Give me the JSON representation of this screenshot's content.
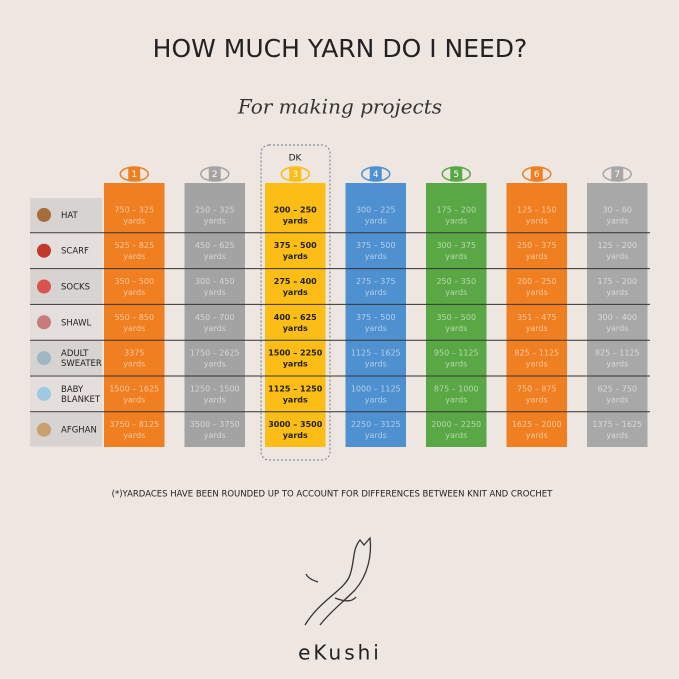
{
  "header": {
    "title": "HOW MUCH YARN DO I NEED?",
    "subtitle": "For making projects"
  },
  "table": {
    "dk_label": "DK",
    "columns": [
      {
        "weight": "1",
        "color": "#f07f22"
      },
      {
        "weight": "2",
        "color": "#a3a3a3"
      },
      {
        "weight": "3",
        "color": "#fbbd16"
      },
      {
        "weight": "4",
        "color": "#4f91d0"
      },
      {
        "weight": "5",
        "color": "#5aa845"
      },
      {
        "weight": "6",
        "color": "#f07f22"
      },
      {
        "weight": "7",
        "color": "#a8a8a8"
      }
    ],
    "rows": [
      {
        "project": "HAT",
        "cells": [
          [
            "750 – 325",
            "yards"
          ],
          [
            "250 – 325",
            "yards"
          ],
          [
            "200 – 250",
            "yards"
          ],
          [
            "300 – 225",
            "yards"
          ],
          [
            "175 – 200",
            "yards"
          ],
          [
            "125 – 150",
            "yards"
          ],
          [
            "30 – 60",
            "yards"
          ]
        ]
      },
      {
        "project": "SCARF",
        "cells": [
          [
            "525 – 825",
            "yards"
          ],
          [
            "450 – 625",
            "yards"
          ],
          [
            "375 – 500",
            "yards"
          ],
          [
            "375 – 500",
            "yards"
          ],
          [
            "300 – 375",
            "yards"
          ],
          [
            "250 – 375",
            "yards"
          ],
          [
            "125 – 200",
            "yards"
          ]
        ]
      },
      {
        "project": "SOCKS",
        "cells": [
          [
            "350 – 500",
            "yards"
          ],
          [
            "300 – 450",
            "yards"
          ],
          [
            "275 – 400",
            "yards"
          ],
          [
            "275 – 375",
            "yards"
          ],
          [
            "250 – 350",
            "yards"
          ],
          [
            "200 – 250",
            "yards"
          ],
          [
            "175 – 200",
            "yards"
          ]
        ]
      },
      {
        "project": "SHAWL",
        "cells": [
          [
            "550 – 850",
            "yards"
          ],
          [
            "450 – 700",
            "yards"
          ],
          [
            "400 – 625",
            "yards"
          ],
          [
            "375 – 500",
            "yards"
          ],
          [
            "350 – 500",
            "yards"
          ],
          [
            "351 – 475",
            "yards"
          ],
          [
            "300 – 400",
            "yards"
          ]
        ]
      },
      {
        "project": "ADULT SWEATER",
        "cells": [
          [
            "3375",
            "yards"
          ],
          [
            "1750 – 2625",
            "yards"
          ],
          [
            "1500 – 2250",
            "yards"
          ],
          [
            "1125 – 1625",
            "yards"
          ],
          [
            "950 – 1125",
            "yards"
          ],
          [
            "825 – 1125",
            "yards"
          ],
          [
            "825 – 1125",
            "yards"
          ]
        ]
      },
      {
        "project": "BABY BLANKET",
        "cells": [
          [
            "1500 – 1625",
            "yards"
          ],
          [
            "1250 – 1500",
            "yards"
          ],
          [
            "1125 – 1250",
            "yards"
          ],
          [
            "1000 – 1125",
            "yards"
          ],
          [
            "875 – 1000",
            "yards"
          ],
          [
            "750 – 875",
            "yards"
          ],
          [
            "625 – 750",
            "yards"
          ]
        ]
      },
      {
        "project": "AFGHAN",
        "cells": [
          [
            "3750 – 8125",
            "yards"
          ],
          [
            "3500 – 3750",
            "yards"
          ],
          [
            "3000 – 3500",
            "yards"
          ],
          [
            "2250 – 3125",
            "yards"
          ],
          [
            "2000 – 2250",
            "yards"
          ],
          [
            "1625 – 2000",
            "yards"
          ],
          [
            "1375 – 1625",
            "yards"
          ]
        ]
      }
    ]
  },
  "footnote": "(*)YARDACES HAVE BEEN ROUNDED UP TO ACCOUNT FOR DIFFERENCES BETWEEN KNIT AND CROCHET",
  "brand": "eKushi"
}
